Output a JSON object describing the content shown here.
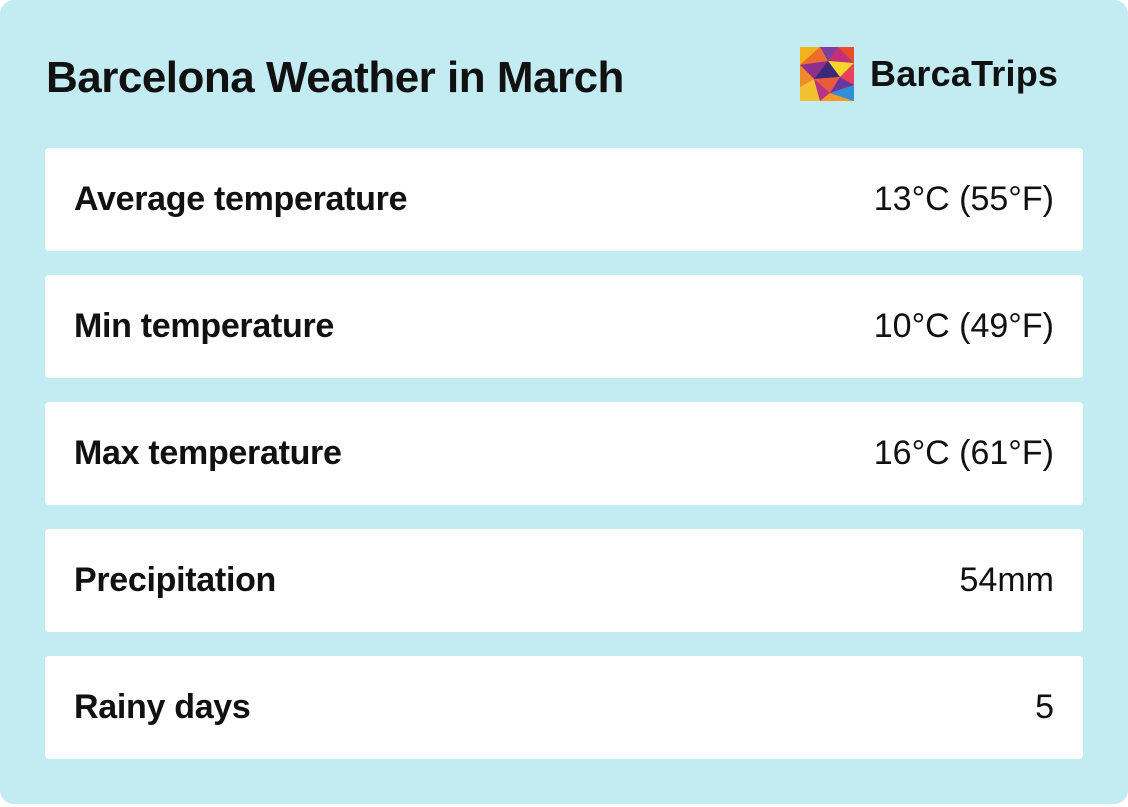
{
  "header": {
    "title": "Barcelona Weather in March",
    "brand_name": "BarcaTrips",
    "brand_logo_icon": "colorful-mosaic-logo-icon"
  },
  "colors": {
    "card_background": "#c2ecf2",
    "row_background": "#ffffff",
    "text": "#111111"
  },
  "rows": [
    {
      "label": "Average temperature",
      "value": "13°C (55°F)"
    },
    {
      "label": "Min temperature",
      "value": "10°C (49°F)"
    },
    {
      "label": "Max temperature",
      "value": "16°C (61°F)"
    },
    {
      "label": "Precipitation",
      "value": "54mm"
    },
    {
      "label": "Rainy days",
      "value": "5"
    }
  ]
}
